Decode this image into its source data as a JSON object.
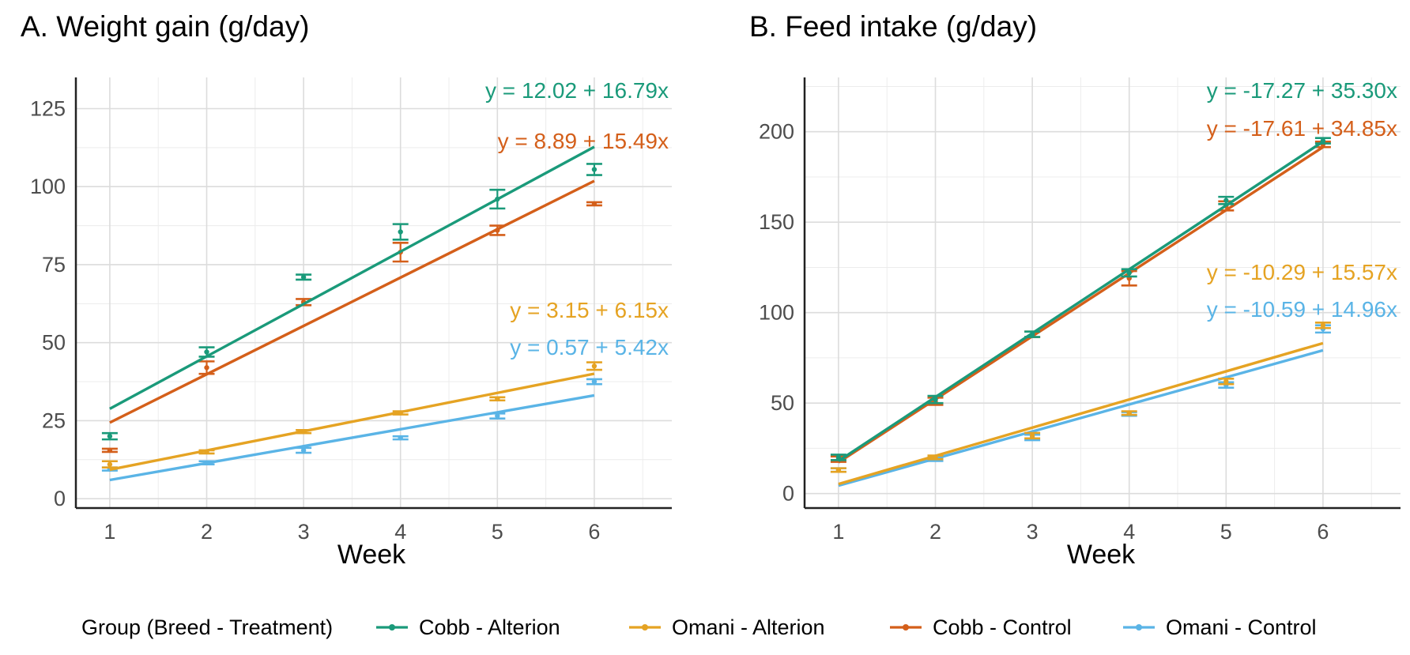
{
  "legend": {
    "title": "Group (Breed - Treatment)",
    "entries": [
      {
        "label": "Cobb - Alterion",
        "color": "#1a9a7a"
      },
      {
        "label": "Omani - Alterion",
        "color": "#e5a323"
      },
      {
        "label": "Cobb - Control",
        "color": "#d45f1a"
      },
      {
        "label": "Omani - Control",
        "color": "#5ab4e6"
      }
    ]
  },
  "chart_data": [
    {
      "type": "line",
      "title": "A. Weight gain (g/day)",
      "xlabel": "Week",
      "ylabel": "",
      "xlim": [
        0.65,
        6.8
      ],
      "ylim": [
        -3,
        135
      ],
      "xticks": [
        1,
        2,
        3,
        4,
        5,
        6
      ],
      "yticks": [
        0,
        25,
        50,
        75,
        100,
        125
      ],
      "grid": true,
      "series": [
        {
          "name": "Cobb - Alterion",
          "color": "#1a9a7a",
          "intercept": 12.02,
          "slope": 16.79,
          "equation": "y = 12.02 + 16.79x",
          "x": [
            1,
            2,
            3,
            4,
            5,
            6
          ],
          "y": [
            20,
            47,
            71,
            85.5,
            96,
            105.5
          ],
          "err": [
            1,
            1.5,
            0.8,
            2.5,
            3,
            1.8
          ]
        },
        {
          "name": "Cobb - Control",
          "color": "#d45f1a",
          "intercept": 8.89,
          "slope": 15.49,
          "equation": "y = 8.89 + 15.49x",
          "x": [
            1,
            2,
            3,
            4,
            5,
            6
          ],
          "y": [
            15.5,
            42,
            63,
            79,
            86,
            94.5
          ],
          "err": [
            0.5,
            2,
            1,
            3,
            1.5,
            0.5
          ]
        },
        {
          "name": "Omani - Alterion",
          "color": "#e5a323",
          "intercept": 3.15,
          "slope": 6.15,
          "equation": "y = 3.15 + 6.15x",
          "x": [
            1,
            2,
            3,
            4,
            5,
            6
          ],
          "y": [
            11,
            15,
            21.5,
            27.5,
            32,
            42.5
          ],
          "err": [
            1,
            0.5,
            0.5,
            0.5,
            0.5,
            1.2
          ]
        },
        {
          "name": "Omani - Control",
          "color": "#5ab4e6",
          "intercept": 0.57,
          "slope": 5.42,
          "equation": "y = 0.57 + 5.42x",
          "x": [
            1,
            2,
            3,
            4,
            5,
            6
          ],
          "y": [
            9.5,
            11.5,
            15.5,
            19.5,
            26.5,
            37.5
          ],
          "err": [
            0.5,
            0.5,
            0.8,
            0.5,
            0.8,
            0.8
          ]
        }
      ]
    },
    {
      "type": "line",
      "title": "B. Feed intake (g/day)",
      "xlabel": "Week",
      "ylabel": "",
      "xlim": [
        0.65,
        6.8
      ],
      "ylim": [
        -8,
        230
      ],
      "xticks": [
        1,
        2,
        3,
        4,
        5,
        6
      ],
      "yticks": [
        0,
        50,
        100,
        150,
        200
      ],
      "grid": true,
      "series": [
        {
          "name": "Cobb - Alterion",
          "color": "#1a9a7a",
          "intercept": -17.27,
          "slope": 35.3,
          "equation": "y = -17.27 + 35.30x",
          "x": [
            1,
            2,
            3,
            4,
            5,
            6
          ],
          "y": [
            20,
            52,
            88,
            122,
            162,
            195
          ],
          "err": [
            1.5,
            2,
            1.5,
            2,
            2,
            1.5
          ]
        },
        {
          "name": "Cobb - Control",
          "color": "#d45f1a",
          "intercept": -17.61,
          "slope": 34.85,
          "equation": "y = -17.61 + 34.85x",
          "x": [
            1,
            2,
            3,
            4,
            5,
            6
          ],
          "y": [
            19,
            51,
            88,
            119,
            159,
            193
          ],
          "err": [
            1.5,
            2,
            1.5,
            4,
            2.5,
            1.5
          ]
        },
        {
          "name": "Omani - Alterion",
          "color": "#e5a323",
          "intercept": -10.29,
          "slope": 15.57,
          "equation": "y = -10.29 + 15.57x",
          "x": [
            1,
            2,
            3,
            4,
            5,
            6
          ],
          "y": [
            13,
            20,
            32,
            44.5,
            62,
            93
          ],
          "err": [
            1,
            1,
            1.5,
            1,
            1.5,
            1.5
          ]
        },
        {
          "name": "Omani - Control",
          "color": "#5ab4e6",
          "intercept": -10.59,
          "slope": 14.96,
          "equation": "y = -10.59 + 14.96x",
          "x": [
            1,
            2,
            3,
            4,
            5,
            6
          ],
          "y": [
            13,
            19,
            31,
            44,
            60,
            91
          ],
          "err": [
            1,
            1,
            1.5,
            1,
            1.5,
            2
          ]
        }
      ]
    }
  ]
}
